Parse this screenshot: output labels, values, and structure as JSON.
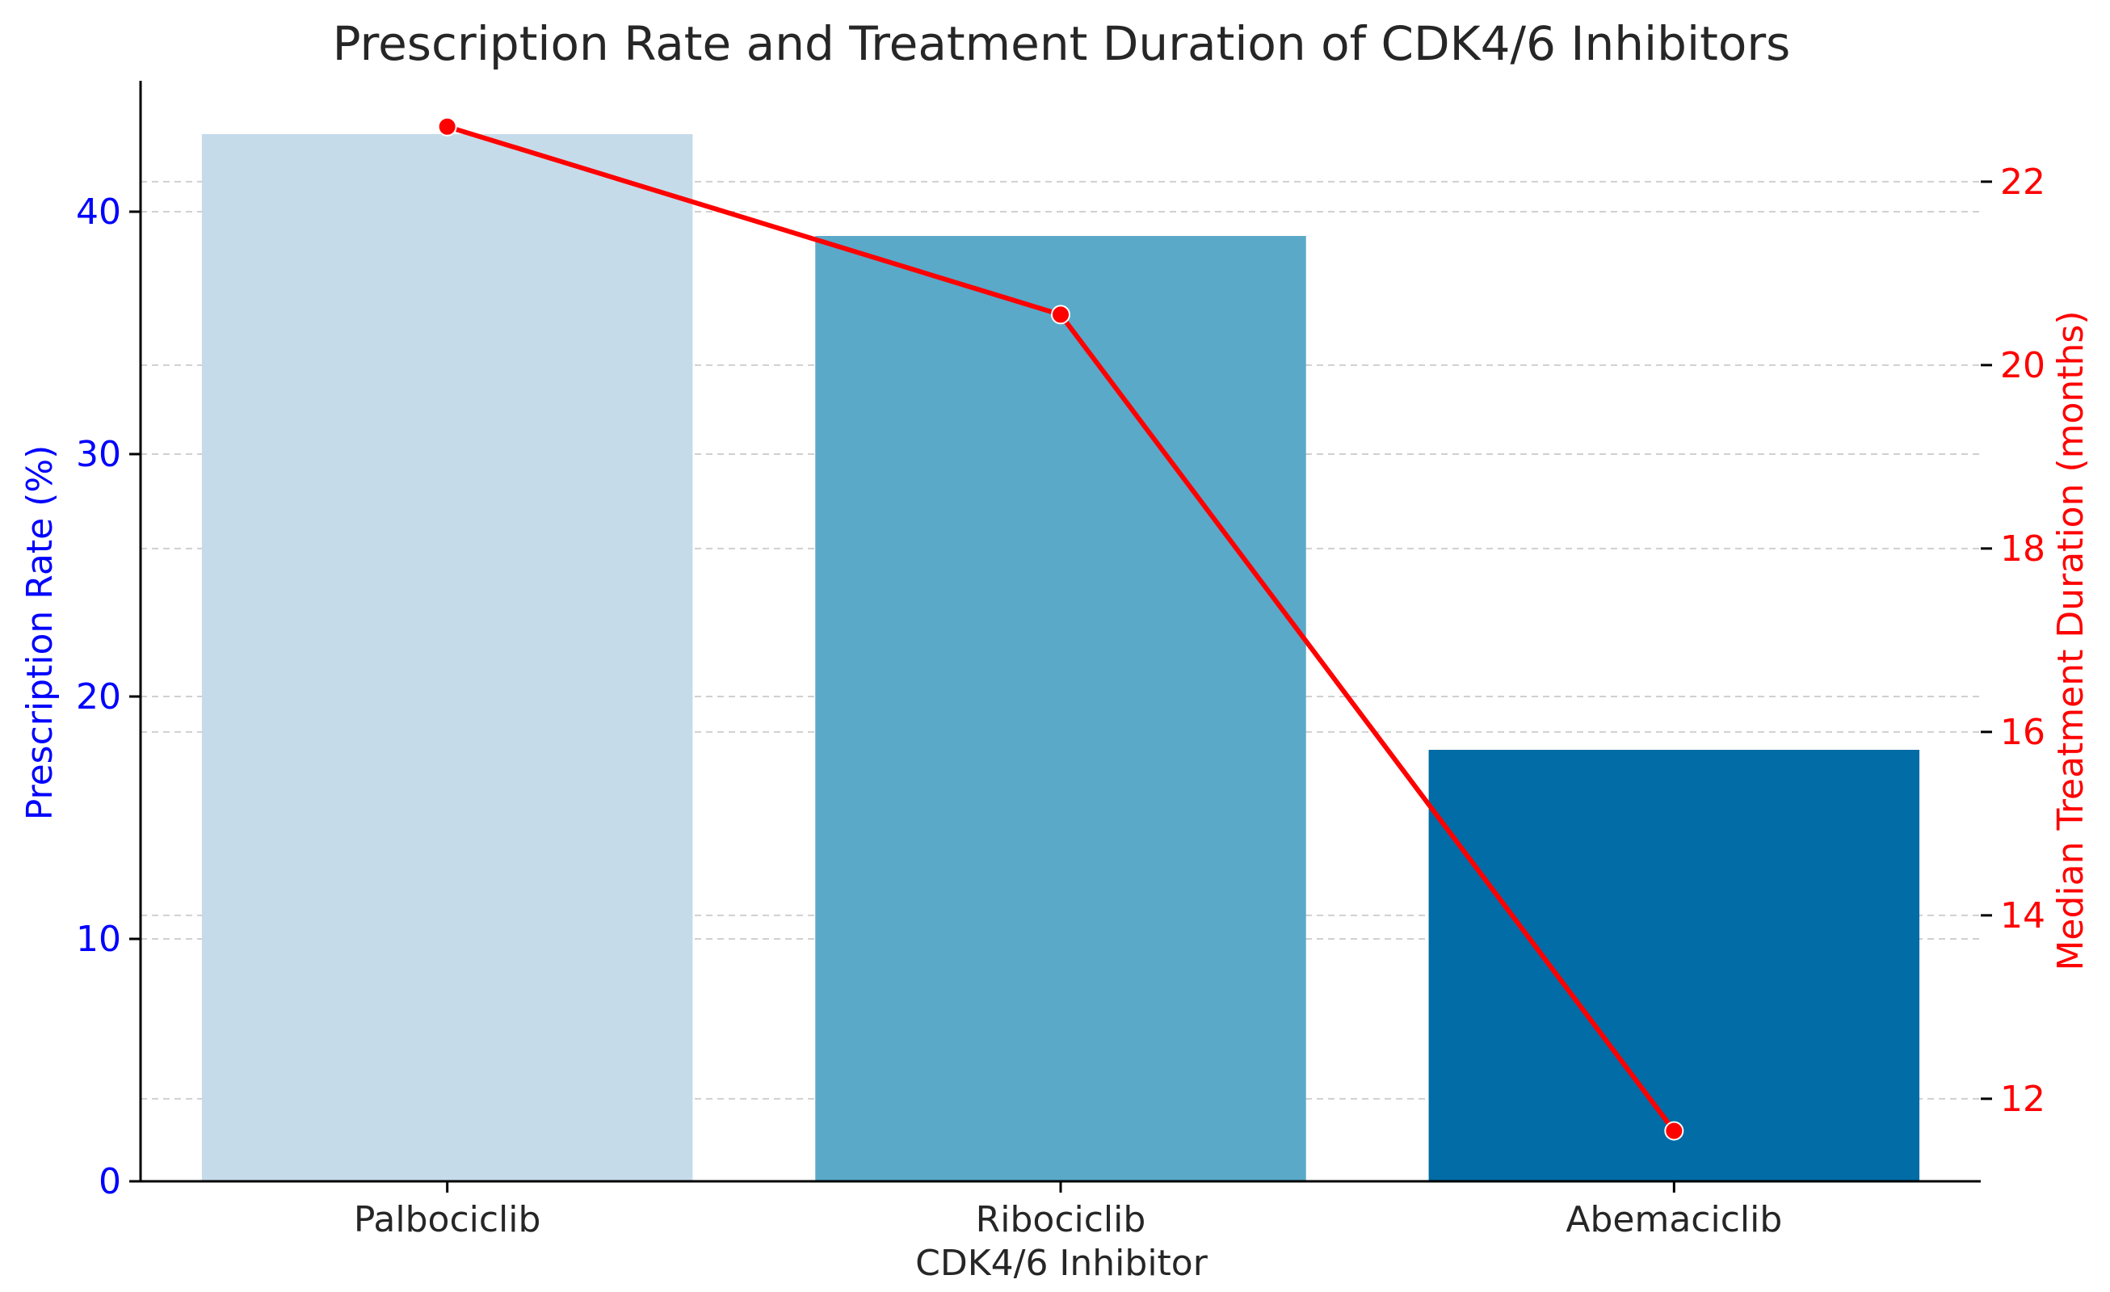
{
  "chart_data": {
    "type": "bar",
    "title": "Prescription Rate and Treatment Duration of CDK4/6 Inhibitors",
    "xlabel": "CDK4/6 Inhibitor",
    "categories": [
      "Palbociclib",
      "Ribociclib",
      "Abemaciclib"
    ],
    "grid": true,
    "series": [
      {
        "name": "Prescription Rate (%)",
        "type": "bar",
        "axis": "left",
        "values": [
          43.2,
          39.0,
          17.8
        ],
        "colors": [
          "#c6dbea",
          "#5aa9c9",
          "#016ca6"
        ]
      },
      {
        "name": "Median Treatment Duration (months)",
        "type": "line",
        "axis": "right",
        "values": [
          22.6,
          20.55,
          11.65
        ],
        "color": "#ff0000"
      }
    ],
    "left_axis": {
      "label": "Prescription Rate (%)",
      "ylim": [
        0,
        45.4
      ],
      "ticks": [
        0,
        10,
        20,
        30,
        40
      ],
      "color": "#0000ff"
    },
    "right_axis": {
      "label": "Median Treatment Duration (months)",
      "ylim": [
        11.1,
        23.1
      ],
      "ticks": [
        12,
        14,
        16,
        18,
        20,
        22
      ],
      "color": "#ff0000"
    }
  }
}
